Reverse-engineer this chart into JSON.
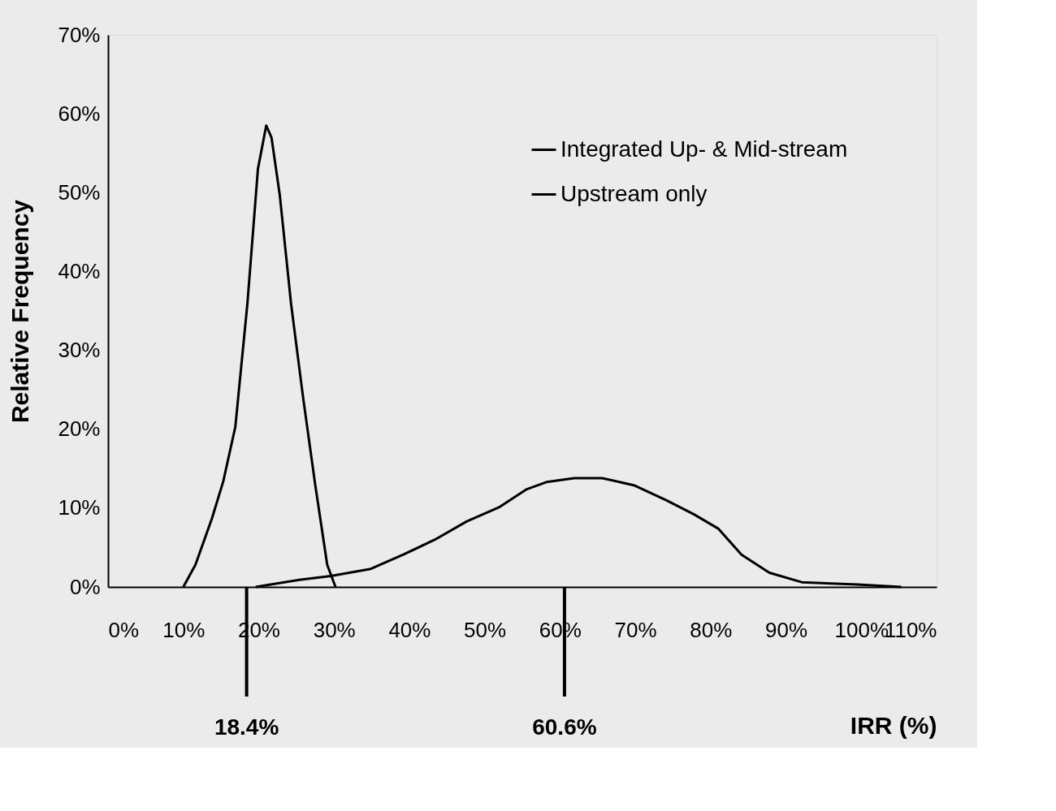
{
  "chart_data": {
    "type": "line",
    "xlabel": "IRR (%)",
    "ylabel": "Relative Frequency",
    "xlim": [
      0,
      110
    ],
    "ylim": [
      0,
      70
    ],
    "xticks": [
      {
        "value": 0,
        "label": "0%"
      },
      {
        "value": 10,
        "label": "10%"
      },
      {
        "value": 20,
        "label": "20%"
      },
      {
        "value": 30,
        "label": "30%"
      },
      {
        "value": 40,
        "label": "40%"
      },
      {
        "value": 50,
        "label": "50%"
      },
      {
        "value": 60,
        "label": "60%"
      },
      {
        "value": 70,
        "label": "70%"
      },
      {
        "value": 80,
        "label": "80%"
      },
      {
        "value": 90,
        "label": "90%"
      },
      {
        "value": 100,
        "label": "100%"
      },
      {
        "value": 110,
        "label": "110%"
      }
    ],
    "yticks": [
      {
        "value": 0,
        "label": "0%"
      },
      {
        "value": 10,
        "label": "10%"
      },
      {
        "value": 20,
        "label": "20%"
      },
      {
        "value": 30,
        "label": "30%"
      },
      {
        "value": 40,
        "label": "40%"
      },
      {
        "value": 50,
        "label": "50%"
      },
      {
        "value": 60,
        "label": "60%"
      },
      {
        "value": 70,
        "label": "70%"
      }
    ],
    "grid": false,
    "legend": "top right",
    "marker": "none",
    "line_style": "solid",
    "series": [
      {
        "name": "Integrated Up- & Mid-stream",
        "color": "#000000",
        "x": [
          10,
          11.6,
          13.8,
          15.3,
          16.9,
          18.5,
          19.9,
          21,
          21.7,
          22.8,
          24.3,
          25.9,
          27.5,
          29.1,
          30.2
        ],
        "values": [
          0,
          2.8,
          8.7,
          13.4,
          20.3,
          35.9,
          53,
          58.5,
          57,
          49.7,
          35.9,
          24,
          13,
          2.8,
          0
        ]
      },
      {
        "name": "Upstream only",
        "color": "#000000",
        "x": [
          19.6,
          25.4,
          29.6,
          34.9,
          39.2,
          43.4,
          47.6,
          51.9,
          55.6,
          58.2,
          61.9,
          65.6,
          69.8,
          74.1,
          77.8,
          81,
          84.1,
          87.8,
          92.1,
          99.5,
          105.3
        ],
        "values": [
          0,
          0.9,
          1.4,
          2.3,
          4.1,
          6,
          8.3,
          10.1,
          12.4,
          13.3,
          13.8,
          13.8,
          12.9,
          11,
          9.2,
          7.4,
          4.1,
          1.8,
          0.6,
          0.3,
          0
        ]
      }
    ],
    "ref_lines": [
      {
        "axis": "x",
        "value": 18.4,
        "label": "18.4%"
      },
      {
        "axis": "x",
        "value": 60.6,
        "label": "60.6%"
      }
    ]
  }
}
